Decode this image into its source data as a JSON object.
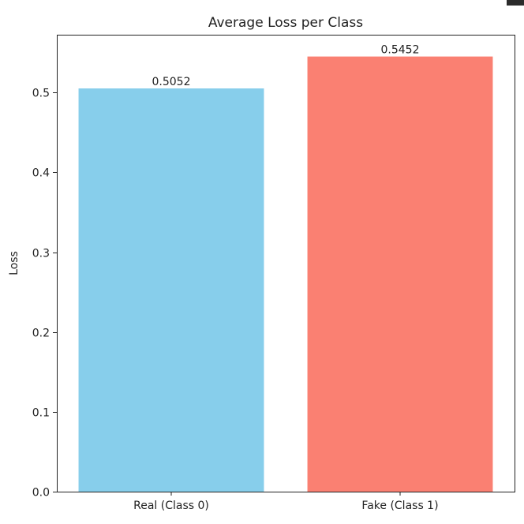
{
  "chart_data": {
    "type": "bar",
    "title": "Average Loss per Class",
    "xlabel": "",
    "ylabel": "Loss",
    "categories": [
      "Real (Class 0)",
      "Fake (Class 1)"
    ],
    "values": [
      0.5052,
      0.5452
    ],
    "value_labels": [
      "0.5052",
      "0.5452"
    ],
    "colors": [
      "#87ceeb",
      "#fa8072"
    ],
    "ylim": [
      0,
      0.5725
    ],
    "yticks": [
      0.0,
      0.1,
      0.2,
      0.3,
      0.4,
      0.5
    ],
    "ytick_labels": [
      "0.0",
      "0.1",
      "0.2",
      "0.3",
      "0.4",
      "0.5"
    ],
    "grid": false,
    "legend": "none"
  }
}
